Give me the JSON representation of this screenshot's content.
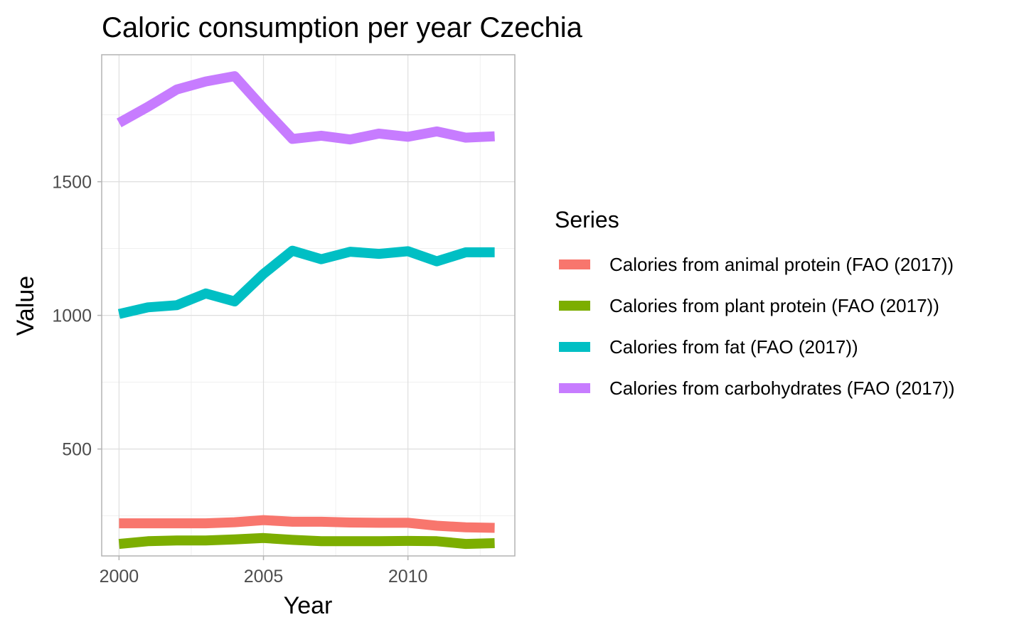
{
  "chart_data": {
    "type": "line",
    "title": "Caloric consumption per year Czechia",
    "xlabel": "Year",
    "ylabel": "Value",
    "xlim": [
      1999.4,
      2013.7
    ],
    "ylim": [
      100,
      1975
    ],
    "x_ticks": [
      2000,
      2005,
      2010
    ],
    "y_ticks": [
      500,
      1000,
      1500
    ],
    "grid": true,
    "legend_position": "right",
    "legend_title": "Series",
    "x": [
      2000,
      2001,
      2002,
      2003,
      2004,
      2005,
      2006,
      2007,
      2008,
      2009,
      2010,
      2011,
      2012,
      2013
    ],
    "series": [
      {
        "name": "Calories from animal protein (FAO (2017))",
        "color": "#F8766D",
        "values": [
          222,
          222,
          222,
          222,
          226,
          234,
          228,
          228,
          225,
          224,
          224,
          213,
          207,
          205
        ]
      },
      {
        "name": "Calories from plant protein (FAO (2017))",
        "color": "#7CAE00",
        "values": [
          145,
          155,
          158,
          158,
          162,
          167,
          160,
          155,
          155,
          155,
          156,
          155,
          145,
          148
        ]
      },
      {
        "name": "Calories from fat (FAO (2017))",
        "color": "#00BFC4",
        "values": [
          1005,
          1030,
          1038,
          1082,
          1052,
          1155,
          1242,
          1210,
          1238,
          1230,
          1240,
          1202,
          1236,
          1236
        ]
      },
      {
        "name": "Calories from carbohydrates (FAO (2017))",
        "color": "#C77CFF",
        "values": [
          1720,
          1780,
          1845,
          1875,
          1895,
          1775,
          1660,
          1672,
          1658,
          1680,
          1668,
          1688,
          1665,
          1670
        ]
      }
    ]
  }
}
